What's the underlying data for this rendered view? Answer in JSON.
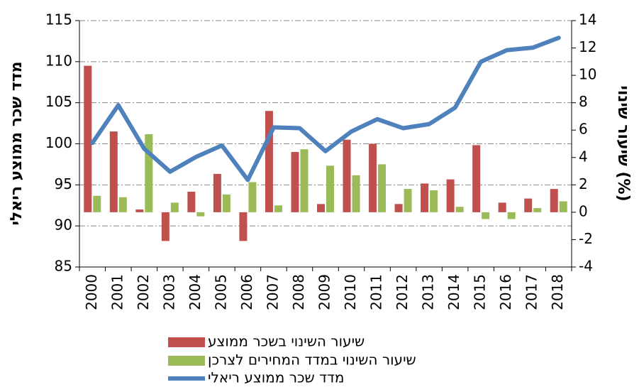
{
  "chart_data": {
    "type": "bar-line",
    "categories": [
      "2000",
      "2001",
      "2002",
      "2003",
      "2004",
      "2005",
      "2006",
      "2007",
      "2008",
      "2009",
      "2010",
      "2011",
      "2012",
      "2013",
      "2014",
      "2015",
      "2016",
      "2017",
      "2018"
    ],
    "y_label": "מדד שכר ממוצע ריאלי",
    "y2_label": "שיעור שינוי (%)",
    "ylim": [
      85,
      115
    ],
    "yticks": [
      85,
      90,
      95,
      100,
      105,
      110,
      115
    ],
    "y2lim": [
      -4,
      14
    ],
    "y2ticks": [
      -4,
      -2,
      0,
      2,
      4,
      6,
      8,
      10,
      12,
      14
    ],
    "grid": true,
    "series": [
      {
        "name": "שיעור השינוי בשכר ממוצע",
        "type": "bar",
        "axis": "y2",
        "color": "#c0504d",
        "values": [
          10.7,
          5.9,
          0.2,
          -2.1,
          1.5,
          2.8,
          -2.1,
          7.4,
          4.4,
          0.6,
          5.3,
          5.0,
          0.6,
          2.1,
          2.4,
          4.9,
          0.7,
          1.0,
          1.7
        ]
      },
      {
        "name": "שיעור השינוי במדד המחירים לצרכן",
        "type": "bar",
        "axis": "y2",
        "color": "#9bbb59",
        "values": [
          1.2,
          1.1,
          5.7,
          0.7,
          -0.3,
          1.3,
          2.2,
          0.5,
          4.6,
          3.4,
          2.7,
          3.5,
          1.7,
          1.6,
          0.4,
          -0.5,
          -0.5,
          0.3,
          0.8
        ]
      },
      {
        "name": "מדד שכר ממוצע ריאלי",
        "type": "line",
        "color": "#4f81bd",
        "values": [
          100.1,
          104.7,
          99.4,
          96.6,
          98.4,
          99.8,
          95.6,
          102.0,
          101.9,
          99.1,
          101.5,
          103.0,
          101.9,
          102.4,
          104.4,
          110.0,
          111.4,
          111.7,
          112.9
        ]
      }
    ]
  }
}
